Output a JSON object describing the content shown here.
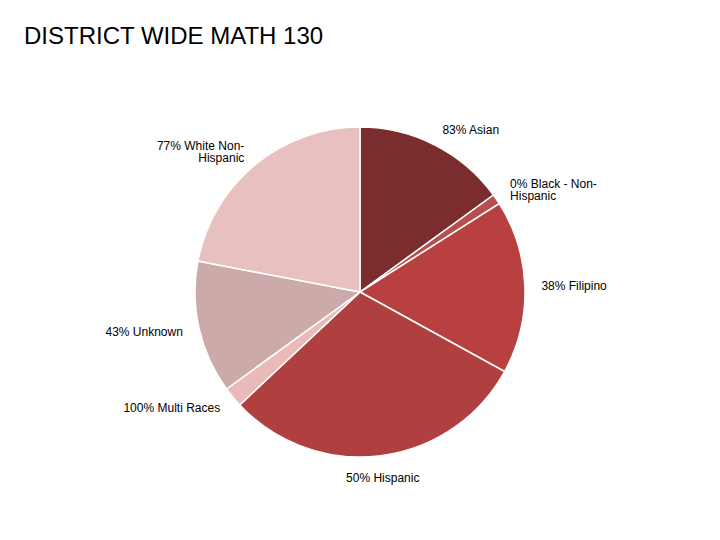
{
  "chart_data": {
    "type": "pie",
    "title": "DISTRICT WIDE MATH 130",
    "categories": [
      "83% Asian",
      "0% Black - Non-\nHispanic",
      "38% Filipino",
      "50% Hispanic",
      "100% Multi Races",
      "43% Unknown",
      "77% White Non-\nHispanic"
    ],
    "values": [
      15,
      1,
      17,
      30,
      2,
      13,
      22
    ],
    "colors": [
      "#7B2D2D",
      "#B55050",
      "#B84040",
      "#B04040",
      "#EABABA",
      "#CDAAAA",
      "#E8C0C0"
    ]
  }
}
